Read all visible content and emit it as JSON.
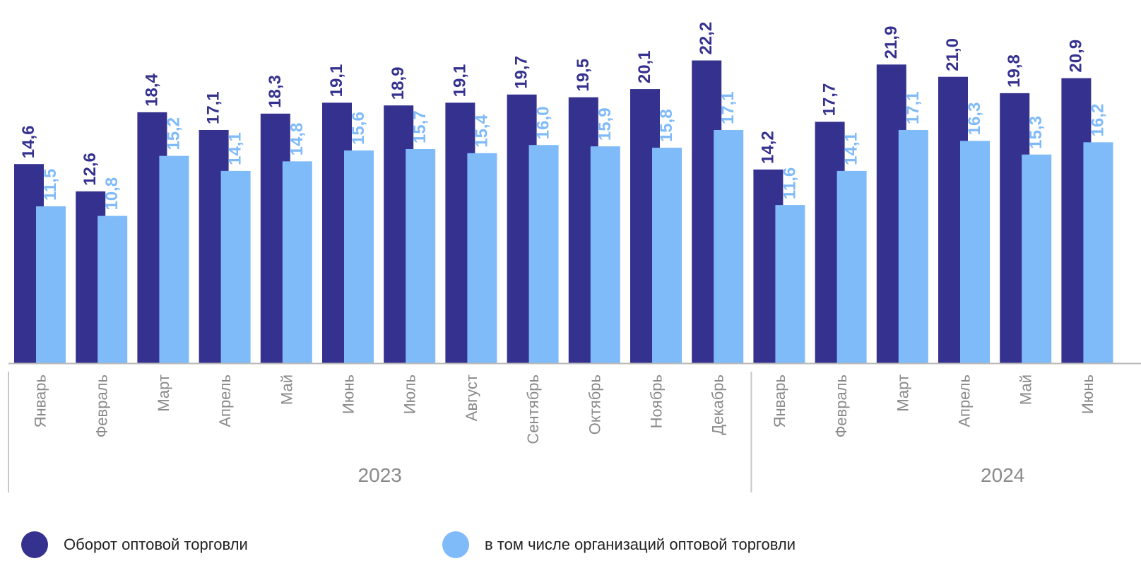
{
  "chart_data": {
    "type": "bar",
    "groups": [
      {
        "label": "2023",
        "categories": [
          "Январь",
          "Февраль",
          "Март",
          "Апрель",
          "Май",
          "Июнь",
          "Июль",
          "Август",
          "Сентябрь",
          "Октябрь",
          "Ноябрь",
          "Декабрь"
        ]
      },
      {
        "label": "2024",
        "categories": [
          "Январь",
          "Февраль",
          "Март",
          "Апрель",
          "Май",
          "Июнь"
        ]
      }
    ],
    "categories": [
      "Январь",
      "Февраль",
      "Март",
      "Апрель",
      "Май",
      "Июнь",
      "Июль",
      "Август",
      "Сентябрь",
      "Октябрь",
      "Ноябрь",
      "Декабрь",
      "Январь",
      "Февраль",
      "Март",
      "Апрель",
      "Май",
      "Июнь"
    ],
    "series": [
      {
        "name": "Оборот оптовой торговли",
        "color": "#35318f",
        "values": [
          14.6,
          12.6,
          18.4,
          17.1,
          18.3,
          19.1,
          18.9,
          19.1,
          19.7,
          19.5,
          20.1,
          22.2,
          14.2,
          17.7,
          21.9,
          21.0,
          19.8,
          20.9
        ],
        "labels": [
          "14,6",
          "12,6",
          "18,4",
          "17,1",
          "18,3",
          "19,1",
          "18,9",
          "19,1",
          "19,7",
          "19,5",
          "20,1",
          "22,2",
          "14,2",
          "17,7",
          "21,9",
          "21,0",
          "19,8",
          "20,9"
        ]
      },
      {
        "name": "в том числе организаций оптовой торговли",
        "color": "#7fbaf9",
        "values": [
          11.5,
          10.8,
          15.2,
          14.1,
          14.8,
          15.6,
          15.7,
          15.4,
          16.0,
          15.9,
          15.8,
          17.1,
          11.6,
          14.1,
          17.1,
          16.3,
          15.3,
          16.2
        ],
        "labels": [
          "11,5",
          "10,8",
          "15,2",
          "14,1",
          "14,8",
          "15,6",
          "15,7",
          "15,4",
          "16,0",
          "15,9",
          "15,8",
          "17,1",
          "11,6",
          "14,1",
          "17,1",
          "16,3",
          "15,3",
          "16,2"
        ]
      }
    ],
    "grid": false,
    "legend_position": "bottom"
  }
}
